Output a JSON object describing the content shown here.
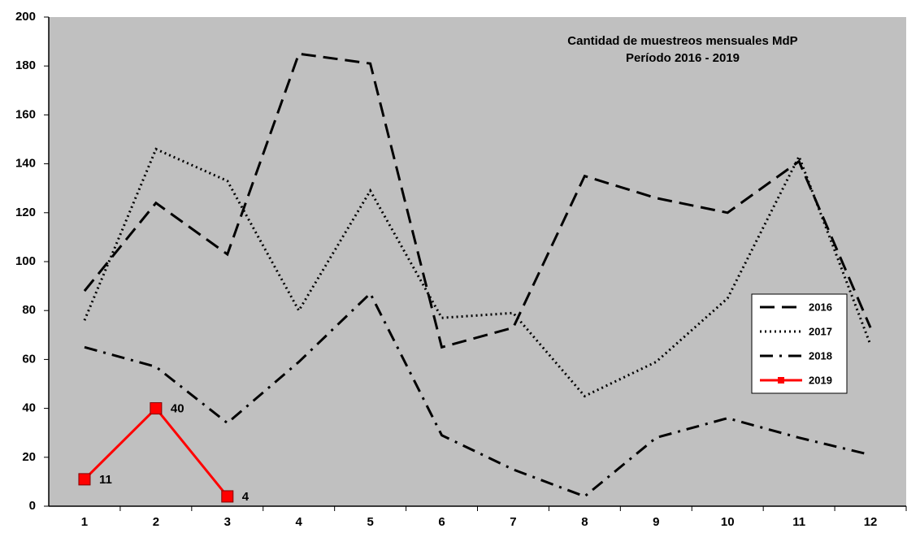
{
  "chart_data": {
    "type": "line",
    "title": "Cantidad  de muestreos mensuales  MdP",
    "subtitle": "Período 2016 - 2019",
    "categories": [
      "1",
      "2",
      "3",
      "4",
      "5",
      "6",
      "7",
      "8",
      "9",
      "10",
      "11",
      "12"
    ],
    "series": [
      {
        "name": "2016",
        "color": "#000000",
        "style": "dash",
        "values": [
          88,
          124,
          103,
          185,
          181,
          65,
          73,
          135,
          126,
          120,
          141,
          73
        ]
      },
      {
        "name": "2017",
        "color": "#000000",
        "style": "dot",
        "values": [
          76,
          146,
          133,
          80,
          129,
          77,
          79,
          45,
          59,
          85,
          143,
          66
        ]
      },
      {
        "name": "2018",
        "color": "#000000",
        "style": "dashdot",
        "values": [
          65,
          57,
          34,
          59,
          87,
          29,
          15,
          4,
          28,
          36,
          28,
          21
        ]
      },
      {
        "name": "2019",
        "color": "#ff0000",
        "style": "solid",
        "marker": "square",
        "data_labels": true,
        "values": [
          11,
          40,
          4,
          null,
          null,
          null,
          null,
          null,
          null,
          null,
          null,
          null
        ]
      }
    ],
    "ylim": [
      0,
      200
    ],
    "yticks": [
      0,
      20,
      40,
      60,
      80,
      100,
      120,
      140,
      160,
      180,
      200
    ],
    "plot_background": "#c0c0c0",
    "legend": "right"
  }
}
